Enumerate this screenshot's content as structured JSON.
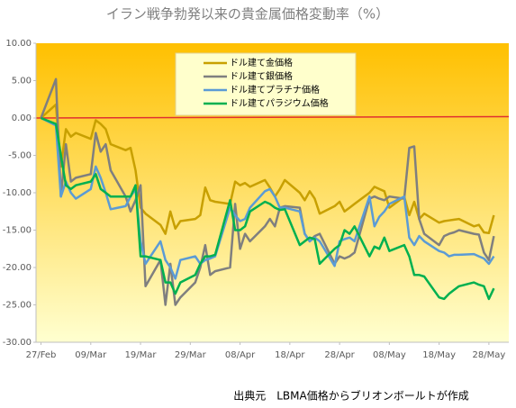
{
  "chart_data": {
    "type": "line",
    "title": "イラン戦争勃発以来の貴金属価格変動率（%）",
    "source": "出典元　LBMA価格からブリオンボールトが作成",
    "x": [
      0,
      3,
      4,
      5,
      6,
      7,
      10,
      11,
      12,
      13,
      14,
      17,
      18,
      19,
      20,
      21,
      24,
      25,
      26,
      27,
      28,
      31,
      32,
      33,
      34,
      35,
      38,
      39,
      40,
      41,
      42,
      45,
      46,
      47,
      48,
      49,
      52,
      53,
      54,
      55,
      56,
      59,
      60,
      61,
      62,
      63,
      66,
      67,
      68,
      69,
      70,
      73,
      74,
      75,
      76,
      77,
      80,
      81,
      82,
      83,
      84,
      87,
      88,
      89,
      90,
      91
    ],
    "xlim": [
      -1,
      94
    ],
    "xticks": [
      {
        "value": 0,
        "label": "27/Feb"
      },
      {
        "value": 10,
        "label": "09/Mar"
      },
      {
        "value": 20,
        "label": "19/Mar"
      },
      {
        "value": 30,
        "label": "29/Mar"
      },
      {
        "value": 40,
        "label": "08/Apr"
      },
      {
        "value": 50,
        "label": "18/Apr"
      },
      {
        "value": 60,
        "label": "28/Apr"
      },
      {
        "value": 70,
        "label": "08/May"
      },
      {
        "value": 80,
        "label": "18/May"
      },
      {
        "value": 90,
        "label": "28/May"
      }
    ],
    "ylim": [
      -30,
      10
    ],
    "yticks": [
      {
        "value": 10,
        "label": "10.00"
      },
      {
        "value": 5,
        "label": "5.00"
      },
      {
        "value": 0,
        "label": "0.00"
      },
      {
        "value": -5,
        "label": "-5.00"
      },
      {
        "value": -10,
        "label": "-10.00"
      },
      {
        "value": -15,
        "label": "-15.00"
      },
      {
        "value": -20,
        "label": "-20.00"
      },
      {
        "value": -25,
        "label": "-25.00"
      },
      {
        "value": -30,
        "label": "-30.00"
      }
    ],
    "zero_line_color": "#e03030",
    "series": [
      {
        "name": "ドル建て金価格",
        "color": "#c8a000",
        "values": [
          0,
          1.8,
          -6.5,
          -1.5,
          -2.5,
          -2,
          -2.8,
          -0.3,
          -0.8,
          -1.5,
          -3.5,
          -4.3,
          -4,
          -7,
          -12,
          -12.8,
          -14.3,
          -15.5,
          -12.5,
          -14.8,
          -13.8,
          -13.5,
          -13,
          -9.3,
          -11,
          -11.2,
          -11.5,
          -8.5,
          -9,
          -8.7,
          -9.2,
          -8.3,
          -9.3,
          -10.5,
          -9.5,
          -8.3,
          -10,
          -11,
          -9.8,
          -10.8,
          -12.8,
          -11.8,
          -11.2,
          -12.5,
          -12,
          -11.5,
          -10,
          -9.2,
          -9.5,
          -9.8,
          -12,
          -10.5,
          -13,
          -11.2,
          -13.5,
          -12.8,
          -14,
          -13.8,
          -13.7,
          -13.6,
          -13.5,
          -14.5,
          -14.3,
          -15.3,
          -15.4,
          -13
        ]
      },
      {
        "name": "ドル建て銀価格",
        "color": "#7f7f7f",
        "values": [
          0,
          5.2,
          -10.5,
          -3.5,
          -8.5,
          -8,
          -7.5,
          -2,
          -4.5,
          -3.5,
          -7,
          -10.5,
          -12.5,
          -11,
          -9,
          -22.5,
          -19,
          -25,
          -19.5,
          -25,
          -24,
          -22,
          -20,
          -17,
          -21,
          -20.5,
          -20,
          -11.5,
          -17.5,
          -15.5,
          -16.5,
          -14.5,
          -13.5,
          -14.5,
          -12,
          -11.8,
          -12,
          -15.5,
          -16.5,
          -15.8,
          -15.5,
          -19.5,
          -18.5,
          -18.8,
          -18.5,
          -18,
          -10.8,
          -10.5,
          -10.8,
          -11,
          -10.5,
          -10.8,
          -4,
          -3.8,
          -13.5,
          -15.5,
          -17,
          -15.8,
          -15.5,
          -15.3,
          -15,
          -15.5,
          -15.6,
          -18,
          -19,
          -15.8
        ]
      },
      {
        "name": "ドル建てプラチナ価格",
        "color": "#5b9bd5",
        "values": [
          0,
          -1,
          -10.5,
          -8.5,
          -10,
          -10.8,
          -9.5,
          -6.5,
          -8,
          -10,
          -12.2,
          -11.8,
          -10.5,
          -9.5,
          -16.5,
          -19.5,
          -16.5,
          -19,
          -20,
          -21.5,
          -19,
          -18.5,
          -19.5,
          -19,
          -18.8,
          -18.5,
          -12,
          -13,
          -13.8,
          -13.5,
          -12,
          -9.8,
          -9.5,
          -10.5,
          -12,
          -12,
          -12.5,
          -15.5,
          -16.5,
          -16,
          -16.5,
          -19.8,
          -16.5,
          -16.2,
          -16,
          -16.5,
          -10.5,
          -14.5,
          -13.2,
          -12.5,
          -11.5,
          -10.5,
          -16,
          -17,
          -15.8,
          -16.5,
          -17.8,
          -18,
          -18.5,
          -18.3,
          -18.3,
          -18.2,
          -18.5,
          -18.8,
          -19.5,
          -18.5
        ]
      },
      {
        "name": "ドル建てパラジウム価格",
        "color": "#00b050",
        "values": [
          0,
          -0.8,
          -5,
          -9,
          -9.5,
          -9,
          -8.5,
          -7.5,
          -9.5,
          -10,
          -10.5,
          -10.5,
          -10.5,
          -9,
          -18.5,
          -18.5,
          -19,
          -22,
          -22,
          -23.5,
          -22,
          -21,
          -19.5,
          -18.5,
          -18.5,
          -18.3,
          -11,
          -15,
          -15,
          -14.5,
          -12.5,
          -11.2,
          -11.5,
          -12,
          -12.3,
          -12.2,
          -17,
          -16.5,
          -16,
          -16.2,
          -19.5,
          -17.5,
          -17,
          -15,
          -15.5,
          -14.5,
          -18.5,
          -17.2,
          -17.5,
          -16,
          -17.8,
          -17,
          -18.5,
          -21,
          -21,
          -21.2,
          -24,
          -24.2,
          -23.5,
          -23,
          -22.5,
          -22,
          -22.3,
          -22.5,
          -24.2,
          -22.8
        ]
      }
    ]
  }
}
